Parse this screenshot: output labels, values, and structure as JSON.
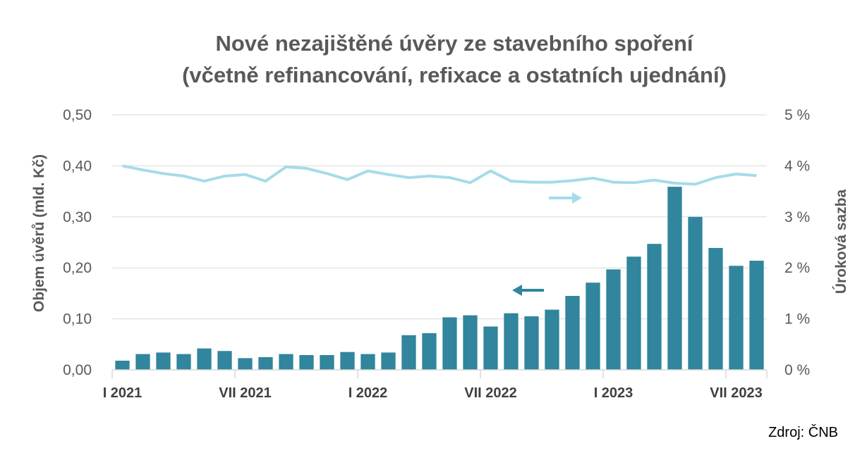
{
  "chart_data": {
    "type": "bar+line",
    "title_lines": [
      "Nové nezajištěné úvěry ze stavebního spoření",
      "(včetně refinancování, refixace a ostatních ujednání)"
    ],
    "ylabel_left": "Objem úvěrů (mld. Kč)",
    "ylabel_right": "Úroková sazba",
    "ylim_left": [
      0,
      0.5
    ],
    "ylim_right": [
      0,
      5
    ],
    "yticks_left": [
      "0,00",
      "0,10",
      "0,20",
      "0,30",
      "0,40",
      "0,50"
    ],
    "yticks_right": [
      "0 %",
      "1 %",
      "2 %",
      "3 %",
      "4 %",
      "5 %"
    ],
    "x_tick_labels": [
      "I 2021",
      "VII 2021",
      "I 2022",
      "VII 2022",
      "I 2023",
      "VII 2023"
    ],
    "grid": true,
    "series": [
      {
        "axis": "left",
        "kind": "bar",
        "color": "#31859c",
        "values": [
          0.018,
          0.031,
          0.034,
          0.031,
          0.042,
          0.037,
          0.023,
          0.025,
          0.031,
          0.029,
          0.029,
          0.035,
          0.031,
          0.034,
          0.068,
          0.072,
          0.103,
          0.107,
          0.085,
          0.111,
          0.105,
          0.118,
          0.145,
          0.171,
          0.197,
          0.222,
          0.247,
          0.359,
          0.3,
          0.239,
          0.204,
          0.214
        ]
      },
      {
        "axis": "right",
        "kind": "line",
        "color": "#a6dbe9",
        "values": [
          4.0,
          3.92,
          3.85,
          3.8,
          3.7,
          3.8,
          3.83,
          3.7,
          3.98,
          3.95,
          3.85,
          3.73,
          3.9,
          3.83,
          3.77,
          3.8,
          3.77,
          3.67,
          3.9,
          3.7,
          3.68,
          3.68,
          3.71,
          3.76,
          3.68,
          3.67,
          3.72,
          3.66,
          3.64,
          3.77,
          3.84,
          3.81
        ]
      }
    ],
    "arrow_colors": {
      "left": "#31859c",
      "right": "#a6dbe9"
    }
  },
  "source": "Zdroj: ČNB"
}
